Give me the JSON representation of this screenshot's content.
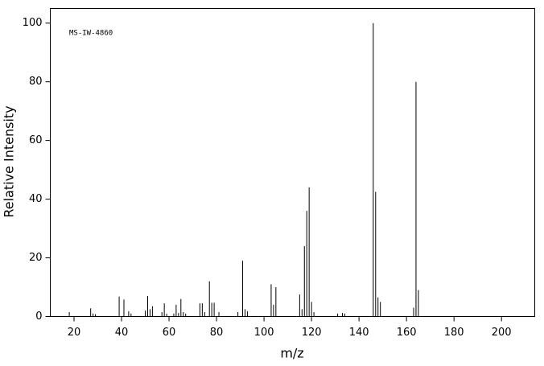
{
  "chart_data": {
    "type": "bar",
    "annotation": "MS-IW-4860",
    "xlabel": "m/z",
    "ylabel": "Relative Intensity",
    "x": [
      18,
      27,
      28,
      29,
      39,
      41,
      43,
      44,
      50,
      51,
      52,
      53,
      57,
      58,
      59,
      62,
      63,
      64,
      65,
      66,
      67,
      73,
      74,
      75,
      77,
      78,
      79,
      81,
      89,
      91,
      92,
      93,
      103,
      104,
      105,
      115,
      116,
      117,
      118,
      119,
      120,
      121,
      131,
      133,
      134,
      146,
      147,
      148,
      149,
      163,
      164,
      165
    ],
    "values": [
      1.5,
      2.8,
      1,
      0.8,
      6.8,
      5.8,
      1.8,
      1,
      2,
      7,
      2.5,
      3.5,
      1.5,
      4.5,
      1,
      1,
      4,
      1.2,
      6,
      1.5,
      1,
      4.5,
      4.5,
      1.5,
      12,
      4.7,
      4.7,
      1.5,
      1.5,
      19,
      2.5,
      1.8,
      11,
      4,
      10,
      7.5,
      2.5,
      24,
      36,
      44,
      5,
      1.5,
      1,
      1.2,
      1,
      100,
      42.5,
      6.5,
      5,
      3,
      80,
      9
    ],
    "color": "#000000",
    "xlim": [
      10,
      214
    ],
    "xticks": [
      20,
      40,
      60,
      80,
      100,
      120,
      140,
      160,
      180,
      200
    ],
    "ylim": [
      0,
      105
    ],
    "yticks": [
      0,
      20,
      40,
      60,
      80,
      100
    ],
    "grid": false
  }
}
